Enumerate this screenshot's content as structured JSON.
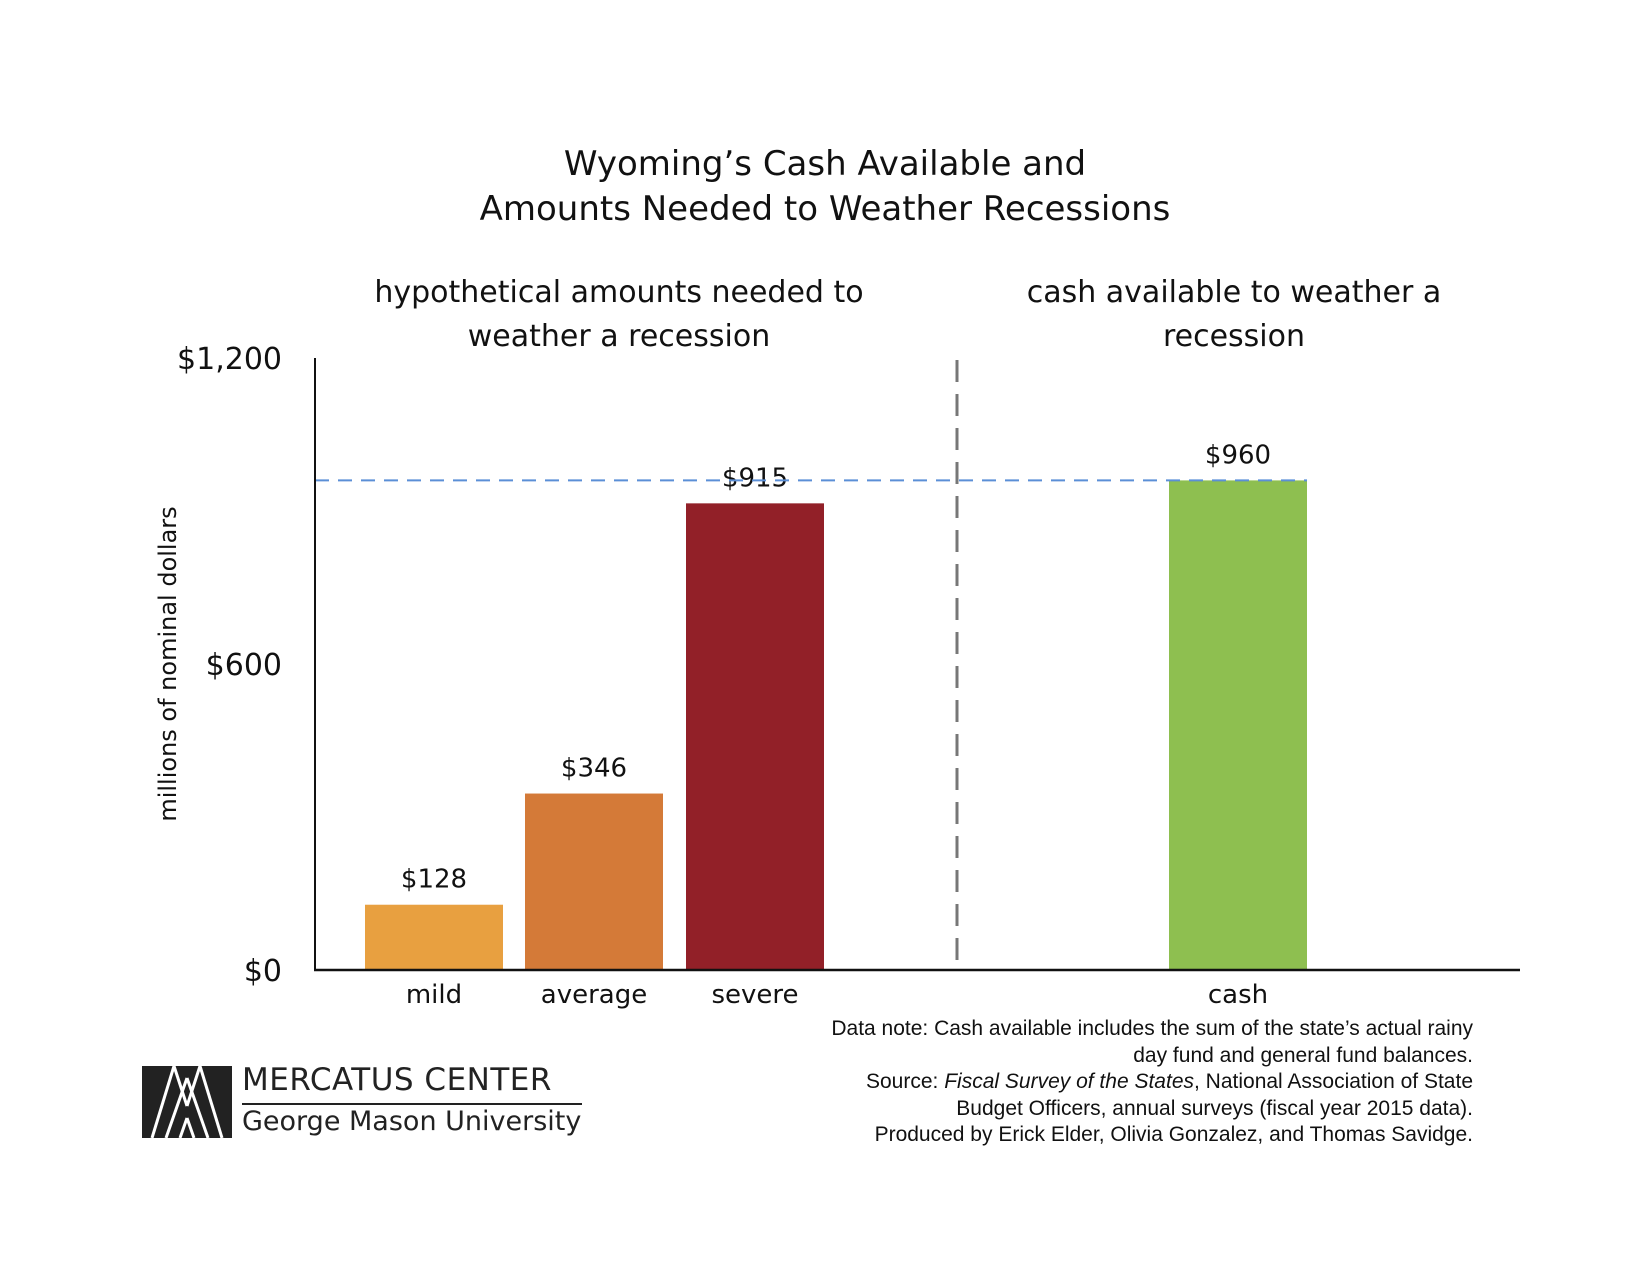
{
  "chart_data": {
    "type": "bar",
    "title": [
      "Wyoming’s Cash Available and",
      "Amounts Needed to Weather Recessions"
    ],
    "ylabel": "millions of nominal dollars",
    "xlabel": "",
    "ylim": [
      0,
      1200
    ],
    "yticks": [
      "$0",
      "$600",
      "$1,200"
    ],
    "ytick_values": [
      0,
      600,
      1200
    ],
    "groups": [
      {
        "label": [
          "hypothetical amounts needed to",
          "weather a recession"
        ]
      },
      {
        "label": [
          "cash available to weather a",
          "recession"
        ]
      }
    ],
    "categories": [
      "mild",
      "average",
      "severe",
      "cash"
    ],
    "values": [
      128,
      346,
      915,
      960
    ],
    "data_labels": [
      "$128",
      "$346",
      "$915",
      "$960"
    ],
    "colors": [
      "#e8a040",
      "#d47a38",
      "#922028",
      "#8ebf50"
    ],
    "reference_line": {
      "value": 960,
      "style": "dashed",
      "color": "#5b8fd6"
    },
    "divider": {
      "style": "dashed",
      "color": "#777777"
    },
    "grid": false,
    "legend": "none"
  },
  "notes": {
    "data_note_1": "Data note: Cash available includes the sum of the state’s actual rainy",
    "data_note_2": "day fund and general fund balances.",
    "source_prefix": "Source: ",
    "source_title": "Fiscal Survey of the States",
    "source_rest": ", National Association of State",
    "source_line_2": "Budget Officers, annual surveys (fiscal year 2015 data).",
    "produced_by": "Produced by Erick Elder, Olivia Gonzalez, and Thomas Savidge."
  },
  "logo": {
    "name": "MERCATUS CENTER",
    "subtitle": "George Mason University"
  }
}
